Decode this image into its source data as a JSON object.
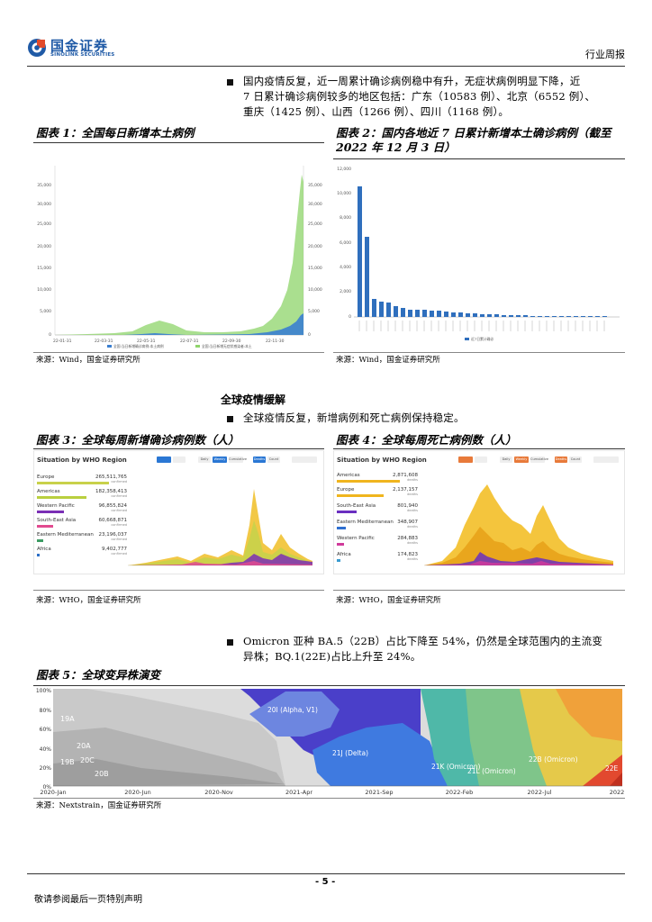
{
  "header": {
    "logo_cn": "国金证券",
    "logo_en": "SINOLINK SECURITIES",
    "report_type": "行业周报",
    "brand_color": "#1f5aa6"
  },
  "para1": {
    "lines": [
      "国内疫情反复，近一周累计确诊病例稳中有升，无症状病例明显下降，近",
      "7 日累计确诊病例较多的地区包括：广东（10583 例）、北京（6552 例）、",
      "重庆（1425 例）、山西（1266 例）、四川（1168 例）。"
    ]
  },
  "figures": {
    "fig1": {
      "caption": "图表 1：全国每日新增本土病例",
      "source": "来源：Wind，国金证券研究所",
      "y_left_ticks": [
        "35,000",
        "30,000",
        "25,000",
        "20,000",
        "15,000",
        "10,000",
        "5,000",
        "0"
      ],
      "y_right_ticks": [
        "35,000",
        "30,000",
        "25,000",
        "20,000",
        "15,000",
        "10,000",
        "5,000",
        "0"
      ],
      "x_ticks": [
        "22-01-31",
        "22-03-31",
        "22-05-31",
        "22-07-31",
        "22-09-30",
        "22-11-30"
      ],
      "legend": [
        "全国:当日新增确诊病例:本土病例",
        "全国:当日新增无症状感染者:本土"
      ]
    },
    "fig2": {
      "caption_line1": "图表 2：国内各地近 7 日累计新增本土确诊病例（截至",
      "caption_line2": "2022 年 12 月 3 日）",
      "source": "来源：Wind，国金证券研究所",
      "legend": "近7日累计确诊",
      "y_ticks": [
        "12,000",
        "10,000",
        "8,000",
        "6,000",
        "4,000",
        "2,000",
        "0"
      ]
    },
    "section_title": "全球疫情缓解",
    "para2": "全球疫情反复，新增病例和死亡病例保持稳定。",
    "fig3": {
      "caption": "图表 3：全球每周新增确诊病例数（人）",
      "source": "来源：WHO，国金证券研究所",
      "panel_title": "Situation by WHO Region",
      "regions": [
        {
          "name": "Europe",
          "value": "265,511,765",
          "color": "#c8d14a"
        },
        {
          "name": "Americas",
          "value": "182,358,413",
          "color": "#b9cf3f"
        },
        {
          "name": "Western Pacific",
          "value": "96,855,824",
          "color": "#7a2fb5"
        },
        {
          "name": "South-East Asia",
          "value": "60,668,871",
          "color": "#e14a8f"
        },
        {
          "name": "Eastern Mediterranean",
          "value": "23,196,037",
          "color": "#3c9b63"
        },
        {
          "name": "Africa",
          "value": "9,402,777",
          "color": "#2c6fc7"
        }
      ],
      "sub_label": "confirmed",
      "tabs": [
        "Daily",
        "Weekly",
        "Cumulative",
        "Deaths",
        "Count"
      ]
    },
    "fig4": {
      "caption": "图表 4：全球每周死亡病例数（人）",
      "source": "来源：WHO，国金证券研究所",
      "panel_title": "Situation by WHO Region",
      "regions": [
        {
          "name": "Americas",
          "value": "2,871,608",
          "color": "#f0b51e"
        },
        {
          "name": "Europe",
          "value": "2,137,157",
          "color": "#f0b51e"
        },
        {
          "name": "South-East Asia",
          "value": "801,940",
          "color": "#6a2fc0"
        },
        {
          "name": "Eastern Mediterranean",
          "value": "348,907",
          "color": "#2f6fd0"
        },
        {
          "name": "Western Pacific",
          "value": "284,883",
          "color": "#d03a9b"
        },
        {
          "name": "Africa",
          "value": "174,823",
          "color": "#3a9bd0"
        }
      ],
      "sub_label": "deaths",
      "tabs": [
        "Daily",
        "Weekly",
        "Cumulative",
        "Deaths",
        "Count"
      ]
    },
    "para3_line1": "Omicron 亚种 BA.5（22B）占比下降至 54%，仍然是全球范围内的主流变",
    "para3_line2": "异株；BQ.1(22E)占比上升至 24%。",
    "fig5": {
      "caption": "图表 5：全球变异株演变",
      "source": "来源：Nextstrain，国金证券研究所",
      "y_ticks": [
        "100%",
        "80%",
        "60%",
        "40%",
        "20%",
        "0%"
      ],
      "x_ticks": [
        "2020-Jan",
        "2020-Jun",
        "2020-Nov",
        "2021-Apr",
        "2021-Sep",
        "2022-Feb",
        "2022-Jul",
        "2022"
      ],
      "labels": {
        "19A": "19A",
        "20A": "20A",
        "19B": "19B",
        "20C": "20C",
        "20B": "20B",
        "alpha": "20I (Alpha, V1)",
        "delta": "21J (Delta)",
        "omicron21k": "21K (Omicron)",
        "omicron21l": "21L (Omicron)",
        "omicron22b": "22B (Omicron)",
        "e22": "22E"
      }
    }
  },
  "footer": {
    "page_number": "- 5 -",
    "disclaimer": "敬请参阅最后一页特别声明"
  }
}
